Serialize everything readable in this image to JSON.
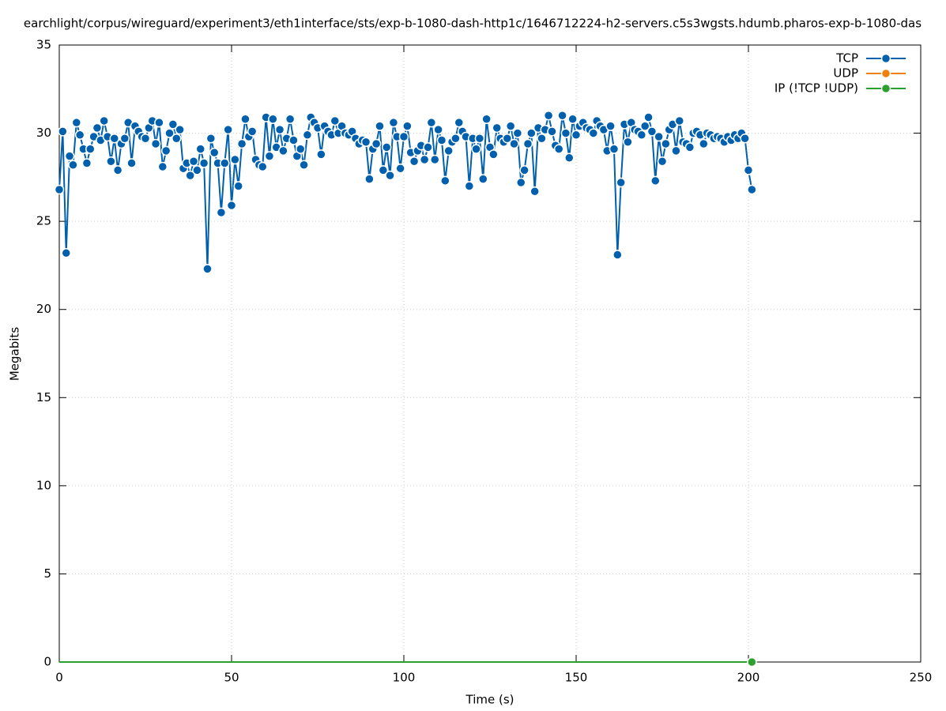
{
  "chart_data": {
    "type": "line",
    "title": "earchlight/corpus/wireguard/experiment3/eth1interface/sts/exp-b-1080-dash-http1c/1646712224-h2-servers.c5s3wgsts.hdumb.pharos-exp-b-1080-das",
    "x_label": "Time (s)",
    "y_label": "Megabits",
    "x": [
      0,
      1,
      2,
      3,
      4,
      5,
      6,
      7,
      8,
      9,
      10,
      11,
      12,
      13,
      14,
      15,
      16,
      17,
      18,
      19,
      20,
      21,
      22,
      23,
      24,
      25,
      26,
      27,
      28,
      29,
      30,
      31,
      32,
      33,
      34,
      35,
      36,
      37,
      38,
      39,
      40,
      41,
      42,
      43,
      44,
      45,
      46,
      47,
      48,
      49,
      50,
      51,
      52,
      53,
      54,
      55,
      56,
      57,
      58,
      59,
      60,
      61,
      62,
      63,
      64,
      65,
      66,
      67,
      68,
      69,
      70,
      71,
      72,
      73,
      74,
      75,
      76,
      77,
      78,
      79,
      80,
      81,
      82,
      83,
      84,
      85,
      86,
      87,
      88,
      89,
      90,
      91,
      92,
      93,
      94,
      95,
      96,
      97,
      98,
      99,
      100,
      101,
      102,
      103,
      104,
      105,
      106,
      107,
      108,
      109,
      110,
      111,
      112,
      113,
      114,
      115,
      116,
      117,
      118,
      119,
      120,
      121,
      122,
      123,
      124,
      125,
      126,
      127,
      128,
      129,
      130,
      131,
      132,
      133,
      134,
      135,
      136,
      137,
      138,
      139,
      140,
      141,
      142,
      143,
      144,
      145,
      146,
      147,
      148,
      149,
      150,
      151,
      152,
      153,
      154,
      155,
      156,
      157,
      158,
      159,
      160,
      161,
      162,
      163,
      164,
      165,
      166,
      167,
      168,
      169,
      170,
      171,
      172,
      173,
      174,
      175,
      176,
      177,
      178,
      179,
      180,
      181,
      182,
      183,
      184,
      185,
      186,
      187,
      188,
      189,
      190,
      191,
      192,
      193,
      194,
      195,
      196,
      197,
      198,
      199,
      200,
      201
    ],
    "series": [
      {
        "name": "TCP",
        "color": "#0060ad",
        "values": [
          26.8,
          30.1,
          23.2,
          28.7,
          28.2,
          30.6,
          29.9,
          29.1,
          28.3,
          29.1,
          29.8,
          30.3,
          29.6,
          30.7,
          29.8,
          28.4,
          29.7,
          27.9,
          29.4,
          29.7,
          30.6,
          28.3,
          30.4,
          30.1,
          29.8,
          29.7,
          30.3,
          30.7,
          29.4,
          30.6,
          28.1,
          29.0,
          30.0,
          30.5,
          29.7,
          30.2,
          28.0,
          28.3,
          27.6,
          28.4,
          27.9,
          29.1,
          28.3,
          22.3,
          29.7,
          28.9,
          28.3,
          25.5,
          28.3,
          30.2,
          25.9,
          28.5,
          27.0,
          29.4,
          30.8,
          29.8,
          30.1,
          28.5,
          28.2,
          28.1,
          30.9,
          28.7,
          30.8,
          29.2,
          30.2,
          29.0,
          29.7,
          30.8,
          29.6,
          28.7,
          29.1,
          28.2,
          29.9,
          30.9,
          30.6,
          30.3,
          28.8,
          30.4,
          30.1,
          29.9,
          30.7,
          30.0,
          30.4,
          30.0,
          29.9,
          30.1,
          29.7,
          29.4,
          29.6,
          29.5,
          27.4,
          29.1,
          29.4,
          30.4,
          27.9,
          29.2,
          27.6,
          30.6,
          29.8,
          28.0,
          29.8,
          30.4,
          28.9,
          28.4,
          29.0,
          29.3,
          28.5,
          29.2,
          30.6,
          28.5,
          30.2,
          29.6,
          27.3,
          29.0,
          29.5,
          29.7,
          30.6,
          30.1,
          29.8,
          27.0,
          29.7,
          29.1,
          29.7,
          27.4,
          30.8,
          29.2,
          28.8,
          30.3,
          29.7,
          29.5,
          29.7,
          30.4,
          29.4,
          30.0,
          27.2,
          27.9,
          29.4,
          30.0,
          26.7,
          30.3,
          29.7,
          30.2,
          31.0,
          30.1,
          29.3,
          29.1,
          31.0,
          30.0,
          28.6,
          30.8,
          29.9,
          30.4,
          30.6,
          30.3,
          30.2,
          30.0,
          30.7,
          30.4,
          30.2,
          29.0,
          30.4,
          29.1,
          23.1,
          27.2,
          30.5,
          29.5,
          30.6,
          30.2,
          30.1,
          29.9,
          30.4,
          30.9,
          30.1,
          27.3,
          29.8,
          28.4,
          29.4,
          30.2,
          30.5,
          29.0,
          30.7,
          29.5,
          29.4,
          29.2,
          30.0,
          30.1,
          29.9,
          29.4,
          30.0,
          29.9,
          29.7,
          29.8,
          29.7,
          29.5,
          29.8,
          29.6,
          29.9,
          29.7,
          30.0,
          29.7,
          27.9,
          26.8
        ]
      },
      {
        "name": "UDP",
        "color": "#f0800e",
        "values": [
          0,
          0,
          0,
          0,
          0,
          0,
          0,
          0,
          0,
          0,
          0,
          0,
          0,
          0,
          0,
          0,
          0,
          0,
          0,
          0,
          0,
          0,
          0,
          0,
          0,
          0,
          0,
          0,
          0,
          0,
          0,
          0,
          0,
          0,
          0,
          0,
          0,
          0,
          0,
          0,
          0,
          0,
          0,
          0,
          0,
          0,
          0,
          0,
          0,
          0,
          0,
          0,
          0,
          0,
          0,
          0,
          0,
          0,
          0,
          0,
          0,
          0,
          0,
          0,
          0,
          0,
          0,
          0,
          0,
          0,
          0,
          0,
          0,
          0,
          0,
          0,
          0,
          0,
          0,
          0,
          0,
          0,
          0,
          0,
          0,
          0,
          0,
          0,
          0,
          0,
          0,
          0,
          0,
          0,
          0,
          0,
          0,
          0,
          0,
          0,
          0,
          0,
          0,
          0,
          0,
          0,
          0,
          0,
          0,
          0,
          0,
          0,
          0,
          0,
          0,
          0,
          0,
          0,
          0,
          0,
          0,
          0,
          0,
          0,
          0,
          0,
          0,
          0,
          0,
          0,
          0,
          0,
          0,
          0,
          0,
          0,
          0,
          0,
          0,
          0,
          0,
          0,
          0,
          0,
          0,
          0,
          0,
          0,
          0,
          0,
          0,
          0,
          0,
          0,
          0,
          0,
          0,
          0,
          0,
          0,
          0,
          0,
          0,
          0,
          0,
          0,
          0,
          0,
          0,
          0,
          0,
          0,
          0,
          0,
          0,
          0,
          0,
          0,
          0,
          0,
          0,
          0,
          0,
          0,
          0,
          0,
          0,
          0,
          0,
          0,
          0,
          0,
          0,
          0,
          0,
          0,
          0,
          0,
          0,
          0,
          0,
          0
        ]
      },
      {
        "name": "IP (!TCP  !UDP)",
        "color": "#2ca02c",
        "values": [
          0,
          0,
          0,
          0,
          0,
          0,
          0,
          0,
          0,
          0,
          0,
          0,
          0,
          0,
          0,
          0,
          0,
          0,
          0,
          0,
          0,
          0,
          0,
          0,
          0,
          0,
          0,
          0,
          0,
          0,
          0,
          0,
          0,
          0,
          0,
          0,
          0,
          0,
          0,
          0,
          0,
          0,
          0,
          0,
          0,
          0,
          0,
          0,
          0,
          0,
          0,
          0,
          0,
          0,
          0,
          0,
          0,
          0,
          0,
          0,
          0,
          0,
          0,
          0,
          0,
          0,
          0,
          0,
          0,
          0,
          0,
          0,
          0,
          0,
          0,
          0,
          0,
          0,
          0,
          0,
          0,
          0,
          0,
          0,
          0,
          0,
          0,
          0,
          0,
          0,
          0,
          0,
          0,
          0,
          0,
          0,
          0,
          0,
          0,
          0,
          0,
          0,
          0,
          0,
          0,
          0,
          0,
          0,
          0,
          0,
          0,
          0,
          0,
          0,
          0,
          0,
          0,
          0,
          0,
          0,
          0,
          0,
          0,
          0,
          0,
          0,
          0,
          0,
          0,
          0,
          0,
          0,
          0,
          0,
          0,
          0,
          0,
          0,
          0,
          0,
          0,
          0,
          0,
          0,
          0,
          0,
          0,
          0,
          0,
          0,
          0,
          0,
          0,
          0,
          0,
          0,
          0,
          0,
          0,
          0,
          0,
          0,
          0,
          0,
          0,
          0,
          0,
          0,
          0,
          0,
          0,
          0,
          0,
          0,
          0,
          0,
          0,
          0,
          0,
          0,
          0,
          0,
          0,
          0,
          0,
          0,
          0,
          0,
          0,
          0,
          0,
          0,
          0,
          0,
          0,
          0,
          0,
          0,
          0,
          0,
          0,
          0
        ]
      }
    ],
    "xlim": [
      0,
      250
    ],
    "xticks": [
      0,
      50,
      100,
      150,
      200,
      250
    ],
    "ylim": [
      0,
      35
    ],
    "yticks": [
      0,
      5,
      10,
      15,
      20,
      25,
      30,
      35
    ],
    "grid": true,
    "legend": "top-right"
  }
}
